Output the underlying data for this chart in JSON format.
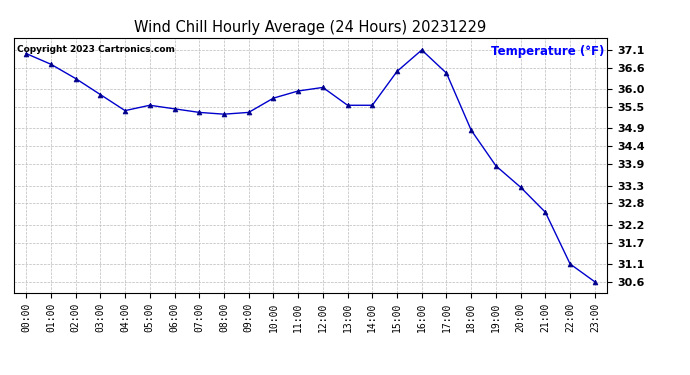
{
  "title": "Wind Chill Hourly Average (24 Hours) 20231229",
  "ylabel_text": "Temperature (°F)",
  "copyright": "Copyright 2023 Cartronics.com",
  "hours": [
    "00:00",
    "01:00",
    "02:00",
    "03:00",
    "04:00",
    "05:00",
    "06:00",
    "07:00",
    "08:00",
    "09:00",
    "10:00",
    "11:00",
    "12:00",
    "13:00",
    "14:00",
    "15:00",
    "16:00",
    "17:00",
    "18:00",
    "19:00",
    "20:00",
    "21:00",
    "22:00",
    "23:00"
  ],
  "values": [
    37.0,
    36.7,
    36.3,
    35.85,
    35.4,
    35.55,
    35.45,
    35.35,
    35.3,
    35.35,
    35.75,
    35.95,
    36.05,
    35.55,
    35.55,
    36.5,
    37.1,
    36.45,
    34.85,
    33.85,
    33.25,
    32.55,
    31.1,
    30.6
  ],
  "line_color": "#0000cc",
  "marker": "^",
  "marker_color": "#00008B",
  "background_color": "#ffffff",
  "grid_color": "#bbbbbb",
  "ylabel_color": "#0000ff",
  "title_color": "#000000",
  "ylim_min": 30.3,
  "ylim_max": 37.45,
  "yticks": [
    37.1,
    36.6,
    36.0,
    35.5,
    34.9,
    34.4,
    33.9,
    33.3,
    32.8,
    32.2,
    31.7,
    31.1,
    30.6
  ]
}
